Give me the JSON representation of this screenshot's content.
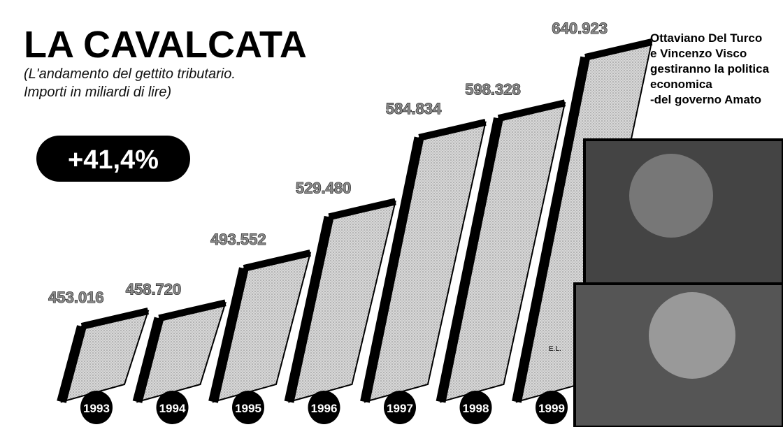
{
  "chart_data": {
    "type": "bar",
    "title": "LA CAVALCATA",
    "subtitle": [
      "(L'andamento del gettito tributario.",
      "Importi in miliardi di lire)"
    ],
    "annotation": "+41,4%",
    "caption": [
      "Ottaviano Del Turco",
      "e Vincenzo Visco",
      "gestiranno la politica",
      "economica",
      "-del governo Amato"
    ],
    "credit": "E.L.",
    "categories": [
      "1993",
      "1994",
      "1995",
      "1996",
      "1997",
      "1998",
      "1999"
    ],
    "values": [
      453016,
      458720,
      493552,
      529480,
      584834,
      598328,
      640923
    ],
    "value_labels": [
      "453.016",
      "458.720",
      "493.552",
      "529.480",
      "584.834",
      "598.328",
      "640.923"
    ],
    "color": "#d0d0d0"
  }
}
